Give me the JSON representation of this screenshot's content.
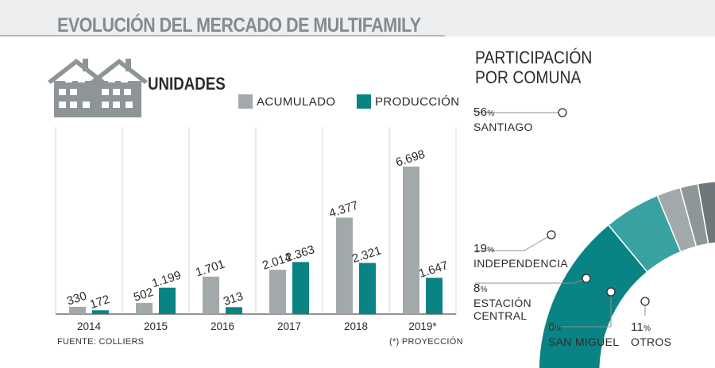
{
  "header": {
    "title": "EVOLUCIÓN DEL MERCADO DE MULTIFAMILY"
  },
  "chart_data": [
    {
      "type": "bar",
      "title": "UNIDADES",
      "categories": [
        "2014",
        "2015",
        "2016",
        "2017",
        "2018",
        "2019*"
      ],
      "series": [
        {
          "name": "ACUMULADO",
          "values": [
            330,
            502,
            1701,
            2014,
            4377,
            6698
          ],
          "labels": [
            "330",
            "502",
            "1.701",
            "2.014",
            "4.377",
            "6.698"
          ],
          "color": "#a2a9ab"
        },
        {
          "name": "PRODUCCIÓN",
          "values": [
            172,
            1199,
            313,
            2363,
            2321,
            1647
          ],
          "labels": [
            "172",
            "1.199",
            "313",
            "2.363",
            "2.321",
            "1.647"
          ],
          "color": "#0a8384"
        }
      ],
      "ylim": [
        0,
        8500
      ],
      "grid": "vertical",
      "legend": "top-right",
      "source": "FUENTE: COLLIERS",
      "note": "(*) PROYECCIÓN"
    },
    {
      "type": "pie",
      "title": "PARTICIPACIÓN\nPOR COMUNA",
      "unit": "%",
      "slices": [
        {
          "label": "SANTIAGO",
          "value": 56,
          "color": "#0a8384"
        },
        {
          "label": "INDEPENDENCIA",
          "value": 19,
          "color": "#38a2a3"
        },
        {
          "label": "ESTACIÓN\nCENTRAL",
          "value": 8,
          "color": "#a2a9ab"
        },
        {
          "label": "SAN MIGUEL",
          "value": 6,
          "color": "#8e9798"
        },
        {
          "label": "OTROS",
          "value": 11,
          "color": "#6e7779"
        }
      ]
    }
  ]
}
